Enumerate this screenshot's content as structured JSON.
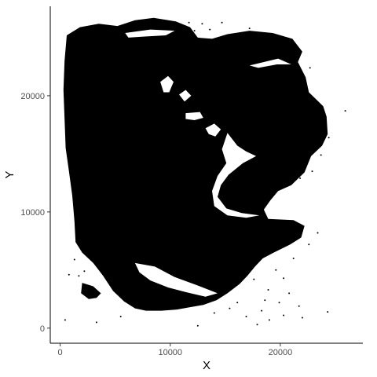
{
  "chart_data": {
    "type": "scatter",
    "title": "",
    "xlabel": "X",
    "ylabel": "Y",
    "xlim": [
      -900,
      27500
    ],
    "ylim": [
      -1300,
      27700
    ],
    "x_ticks": [
      0,
      10000,
      20000
    ],
    "y_ticks": [
      0,
      10000,
      20000
    ],
    "x_tick_labels": [
      "0",
      "10000",
      "20000"
    ],
    "y_tick_labels": [
      "0",
      "10000",
      "20000"
    ],
    "grid": false,
    "legend": "none",
    "point_color": "#000000",
    "regions": [
      {
        "name": "tissue-main",
        "fill": "#000000",
        "outline": [
          [
            600,
            25200
          ],
          [
            1800,
            25900
          ],
          [
            3500,
            26200
          ],
          [
            5200,
            26000
          ],
          [
            6800,
            26500
          ],
          [
            8500,
            26700
          ],
          [
            10500,
            26400
          ],
          [
            11800,
            25900
          ],
          [
            12500,
            25000
          ],
          [
            13800,
            24900
          ],
          [
            15200,
            25300
          ],
          [
            17200,
            25600
          ],
          [
            19300,
            25400
          ],
          [
            21100,
            24900
          ],
          [
            22000,
            23800
          ],
          [
            21600,
            22900
          ],
          [
            22300,
            21600
          ],
          [
            22600,
            20300
          ],
          [
            23900,
            19100
          ],
          [
            24200,
            18200
          ],
          [
            24300,
            16700
          ],
          [
            23800,
            15700
          ],
          [
            22800,
            14800
          ],
          [
            22200,
            13400
          ],
          [
            21000,
            12300
          ],
          [
            19800,
            11800
          ],
          [
            19100,
            11000
          ],
          [
            18500,
            10200
          ],
          [
            18900,
            9400
          ],
          [
            21200,
            9300
          ],
          [
            22200,
            8800
          ],
          [
            21900,
            7800
          ],
          [
            20900,
            7200
          ],
          [
            19400,
            6500
          ],
          [
            18400,
            6000
          ],
          [
            17700,
            5300
          ],
          [
            17000,
            4500
          ],
          [
            16300,
            3800
          ],
          [
            15200,
            3000
          ],
          [
            14200,
            2400
          ],
          [
            13000,
            2000
          ],
          [
            11800,
            1800
          ],
          [
            10600,
            1600
          ],
          [
            9200,
            1500
          ],
          [
            7800,
            1500
          ],
          [
            6800,
            1700
          ],
          [
            5800,
            2300
          ],
          [
            4800,
            3200
          ],
          [
            3900,
            4500
          ],
          [
            3000,
            5600
          ],
          [
            2000,
            6500
          ],
          [
            1400,
            7400
          ],
          [
            1300,
            9200
          ],
          [
            1100,
            11400
          ],
          [
            800,
            13500
          ],
          [
            500,
            15500
          ],
          [
            400,
            18000
          ],
          [
            300,
            20500
          ],
          [
            400,
            23000
          ]
        ]
      },
      {
        "name": "tissue-lower-left-fragment",
        "fill": "#000000",
        "outline": [
          [
            2000,
            3900
          ],
          [
            3000,
            3600
          ],
          [
            3700,
            3000
          ],
          [
            3300,
            2600
          ],
          [
            2600,
            2500
          ],
          [
            1900,
            3000
          ]
        ]
      }
    ],
    "gaps": [
      {
        "name": "inner-curved-gap",
        "fill": "#ffffff",
        "outline": [
          [
            15200,
            16800
          ],
          [
            16100,
            15700
          ],
          [
            16900,
            15200
          ],
          [
            17800,
            14800
          ],
          [
            16600,
            14200
          ],
          [
            15300,
            13200
          ],
          [
            14600,
            12300
          ],
          [
            14300,
            11300
          ],
          [
            15100,
            10300
          ],
          [
            16500,
            9900
          ],
          [
            18100,
            9700
          ],
          [
            16900,
            9500
          ],
          [
            15200,
            9700
          ],
          [
            14000,
            10500
          ],
          [
            13800,
            11800
          ],
          [
            14300,
            13100
          ],
          [
            15100,
            14200
          ],
          [
            14700,
            15400
          ]
        ]
      },
      {
        "name": "top-left-notch",
        "fill": "#ffffff",
        "outline": [
          [
            5900,
            25400
          ],
          [
            8200,
            25700
          ],
          [
            10400,
            25600
          ],
          [
            9600,
            25200
          ],
          [
            7700,
            25100
          ],
          [
            6200,
            25000
          ]
        ]
      },
      {
        "name": "hole-upper-a",
        "fill": "#ffffff",
        "outline": [
          [
            9100,
            21200
          ],
          [
            9800,
            21700
          ],
          [
            10300,
            21200
          ],
          [
            9900,
            20300
          ],
          [
            9400,
            20300
          ]
        ]
      },
      {
        "name": "hole-upper-b",
        "fill": "#ffffff",
        "outline": [
          [
            11400,
            18500
          ],
          [
            12700,
            18600
          ],
          [
            13000,
            18100
          ],
          [
            12200,
            17900
          ],
          [
            11400,
            18000
          ]
        ]
      },
      {
        "name": "hole-upper-c",
        "fill": "#ffffff",
        "outline": [
          [
            10800,
            20100
          ],
          [
            11400,
            20500
          ],
          [
            11900,
            20000
          ],
          [
            11300,
            19500
          ]
        ]
      },
      {
        "name": "hole-right-streak",
        "fill": "#ffffff",
        "outline": [
          [
            17200,
            22600
          ],
          [
            19800,
            23200
          ],
          [
            21000,
            22700
          ],
          [
            19700,
            22700
          ],
          [
            18000,
            22400
          ]
        ]
      },
      {
        "name": "hole-middle",
        "fill": "#ffffff",
        "outline": [
          [
            13200,
            17200
          ],
          [
            14000,
            17600
          ],
          [
            14600,
            17100
          ],
          [
            14100,
            16500
          ],
          [
            13500,
            16700
          ]
        ]
      },
      {
        "name": "bottom-scatter-band",
        "fill": "#ffffff",
        "outline": [
          [
            6800,
            5600
          ],
          [
            8600,
            5300
          ],
          [
            10400,
            4400
          ],
          [
            12400,
            3700
          ],
          [
            14300,
            3000
          ],
          [
            13200,
            2700
          ],
          [
            11400,
            3100
          ],
          [
            9800,
            3500
          ],
          [
            8200,
            4100
          ],
          [
            7200,
            4800
          ]
        ]
      }
    ],
    "outlier_points": [
      [
        450,
        700
      ],
      [
        3300,
        500
      ],
      [
        5500,
        1000
      ],
      [
        12500,
        200
      ],
      [
        14700,
        26300
      ],
      [
        17200,
        25800
      ],
      [
        18300,
        24700
      ],
      [
        22700,
        22400
      ],
      [
        23200,
        19600
      ],
      [
        25900,
        18700
      ],
      [
        23400,
        8200
      ],
      [
        22600,
        7200
      ],
      [
        21200,
        6000
      ],
      [
        20300,
        4300
      ],
      [
        18600,
        2400
      ],
      [
        18300,
        1500
      ],
      [
        17900,
        300
      ],
      [
        19000,
        700
      ],
      [
        20300,
        1100
      ],
      [
        22000,
        900
      ],
      [
        24300,
        1400
      ],
      [
        16100,
        2200
      ],
      [
        15400,
        1700
      ],
      [
        16900,
        1000
      ],
      [
        14000,
        1300
      ],
      [
        11500,
        2700
      ],
      [
        12900,
        26200
      ],
      [
        13600,
        25700
      ],
      [
        11700,
        26300
      ],
      [
        12200,
        25600
      ],
      [
        15900,
        24000
      ],
      [
        16600,
        23300
      ],
      [
        1300,
        5900
      ],
      [
        800,
        4600
      ],
      [
        1700,
        4500
      ],
      [
        2200,
        4900
      ],
      [
        21700,
        1900
      ],
      [
        19900,
        2200
      ],
      [
        18900,
        3300
      ],
      [
        20800,
        3000
      ],
      [
        17600,
        4200
      ],
      [
        19600,
        5000
      ],
      [
        24400,
        16400
      ],
      [
        24000,
        17800
      ],
      [
        22900,
        13500
      ],
      [
        23700,
        14900
      ],
      [
        21800,
        12900
      ],
      [
        20500,
        8500
      ],
      [
        21300,
        8800
      ],
      [
        20100,
        7400
      ]
    ]
  }
}
